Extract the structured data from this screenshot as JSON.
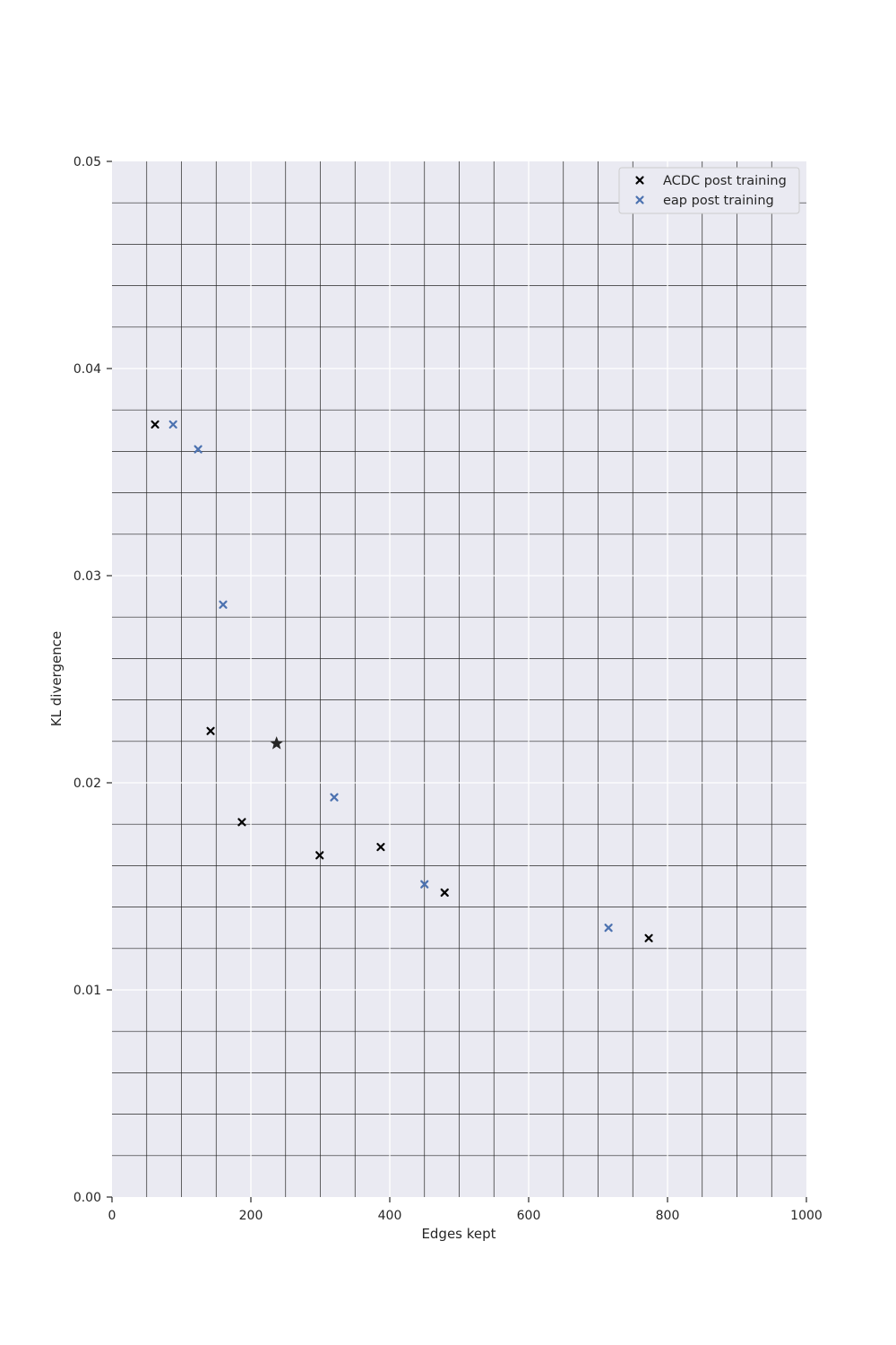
{
  "chart_data": {
    "type": "scatter",
    "title": "",
    "xlabel": "Edges kept",
    "ylabel": "KL divergence",
    "xlim": [
      0,
      1000
    ],
    "ylim": [
      0,
      0.05
    ],
    "x_major_ticks": [
      0,
      200,
      400,
      600,
      800,
      1000
    ],
    "x_major_tick_labels": [
      "0",
      "200",
      "400",
      "600",
      "800",
      "1000"
    ],
    "x_minor_step": 50,
    "y_major_ticks": [
      0,
      0.01,
      0.02,
      0.03,
      0.04,
      0.05
    ],
    "y_major_tick_labels": [
      "0.00",
      "0.01",
      "0.02",
      "0.03",
      "0.04",
      "0.05"
    ],
    "y_minor_step": 0.002,
    "grid": true,
    "legend_position": "top-right",
    "background_color": "#eaeaf2",
    "major_grid_color": "#ffffff",
    "minor_grid_color": "#262626",
    "series": [
      {
        "name": "ACDC post training",
        "color": "#000000",
        "marker": "x",
        "points": [
          {
            "x": 62,
            "y": 0.0373
          },
          {
            "x": 142,
            "y": 0.0225
          },
          {
            "x": 187,
            "y": 0.0181
          },
          {
            "x": 299,
            "y": 0.0165
          },
          {
            "x": 387,
            "y": 0.0169
          },
          {
            "x": 479,
            "y": 0.0147
          },
          {
            "x": 773,
            "y": 0.0125
          }
        ]
      },
      {
        "name": "eap post training",
        "color": "#4c72b0",
        "marker": "x",
        "points": [
          {
            "x": 88,
            "y": 0.0373
          },
          {
            "x": 124,
            "y": 0.0361
          },
          {
            "x": 160,
            "y": 0.0286
          },
          {
            "x": 320,
            "y": 0.0193
          },
          {
            "x": 450,
            "y": 0.0151
          },
          {
            "x": 715,
            "y": 0.013
          }
        ]
      }
    ],
    "highlight": {
      "marker": "star",
      "color": "#262626",
      "x": 237,
      "y": 0.0219
    }
  }
}
